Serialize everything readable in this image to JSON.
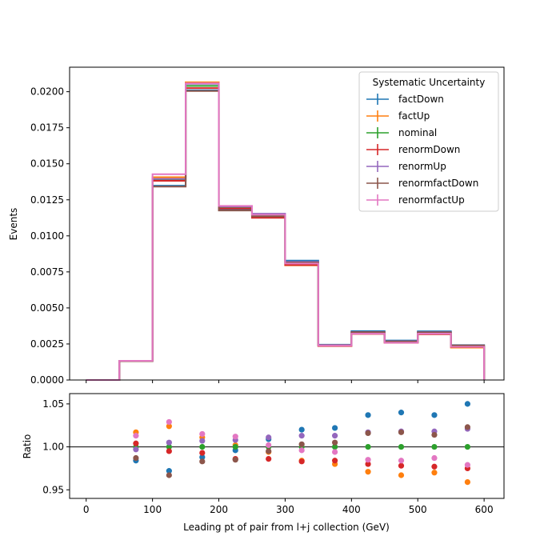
{
  "chart_data": [
    {
      "type": "histogram",
      "xlabel": "",
      "ylabel": "Events",
      "xlim": [
        -25,
        630
      ],
      "ylim": [
        0,
        0.0217
      ],
      "yticks": [
        "0.0000",
        "0.0025",
        "0.0050",
        "0.0075",
        "0.0100",
        "0.0125",
        "0.0150",
        "0.0175",
        "0.0200"
      ],
      "ytick_values": [
        0,
        0.0025,
        0.005,
        0.0075,
        0.01,
        0.0125,
        0.015,
        0.0175,
        0.02
      ],
      "bin_edges": [
        0,
        50,
        100,
        150,
        200,
        250,
        300,
        350,
        400,
        450,
        500,
        550,
        600
      ],
      "legend_title": "Systematic Uncertainty",
      "legend_position": "top-right",
      "series": [
        {
          "name": "factDown",
          "color": "#1f77b4",
          "values": [
            0.0,
            0.00132,
            0.01348,
            0.0201,
            0.01183,
            0.01137,
            0.00828,
            0.00245,
            0.00339,
            0.00274,
            0.00338,
            0.00242
          ]
        },
        {
          "name": "factUp",
          "color": "#ff7f0e",
          "values": [
            0.0,
            0.00133,
            0.01407,
            0.02065,
            0.01206,
            0.01132,
            0.00796,
            0.00236,
            0.00323,
            0.00259,
            0.00323,
            0.00225
          ]
        },
        {
          "name": "nominal",
          "color": "#2ca02c",
          "values": [
            0.0,
            0.00132,
            0.01388,
            0.0204,
            0.01194,
            0.01141,
            0.00812,
            0.0024,
            0.00327,
            0.00264,
            0.00326,
            0.00235
          ]
        },
        {
          "name": "renormDown",
          "color": "#d62728",
          "values": [
            0.0,
            0.00132,
            0.01382,
            0.02025,
            0.0119,
            0.01125,
            0.00798,
            0.00236,
            0.0032,
            0.00258,
            0.00318,
            0.00229
          ]
        },
        {
          "name": "renormUp",
          "color": "#9467bd",
          "values": [
            0.0,
            0.00133,
            0.01395,
            0.02055,
            0.01203,
            0.01154,
            0.0082,
            0.00243,
            0.00333,
            0.00269,
            0.00332,
            0.0024
          ]
        },
        {
          "name": "renormfactDown",
          "color": "#8c564b",
          "values": [
            0.0,
            0.00132,
            0.01342,
            0.02005,
            0.01176,
            0.01135,
            0.00815,
            0.00241,
            0.00332,
            0.00268,
            0.00331,
            0.0024
          ]
        },
        {
          "name": "renormfactUp",
          "color": "#e377c2",
          "values": [
            0.0,
            0.00133,
            0.01428,
            0.02058,
            0.01208,
            0.01147,
            0.00808,
            0.00239,
            0.00322,
            0.00259,
            0.00322,
            0.0023
          ]
        }
      ]
    },
    {
      "type": "scatter",
      "xlabel": "Leading pt of pair from l+j collection (GeV)",
      "ylabel": "Ratio",
      "xlim": [
        -25,
        630
      ],
      "ylim": [
        0.94,
        1.062
      ],
      "xticks": [
        "0",
        "100",
        "200",
        "300",
        "400",
        "500",
        "600"
      ],
      "xtick_values": [
        0,
        100,
        200,
        300,
        400,
        500,
        600
      ],
      "yticks": [
        "0.95",
        "1.00",
        "1.05"
      ],
      "ytick_values": [
        0.95,
        1.0,
        1.05
      ],
      "reference_line": 1.0,
      "x": [
        75,
        125,
        175,
        225,
        275,
        325,
        375,
        425,
        475,
        525,
        575
      ],
      "series": [
        {
          "name": "factDown",
          "color": "#1f77b4",
          "values": [
            0.984,
            0.972,
            0.988,
            0.996,
            1.009,
            1.02,
            1.022,
            1.037,
            1.04,
            1.037,
            1.05
          ]
        },
        {
          "name": "factUp",
          "color": "#ff7f0e",
          "values": [
            1.017,
            1.024,
            1.011,
            1.002,
            0.994,
            0.984,
            0.98,
            0.971,
            0.967,
            0.97,
            0.959
          ]
        },
        {
          "name": "nominal",
          "color": "#2ca02c",
          "values": [
            1.0,
            1.0,
            1.0,
            1.0,
            1.0,
            1.0,
            1.0,
            1.0,
            1.0,
            1.0,
            1.0
          ]
        },
        {
          "name": "renormDown",
          "color": "#d62728",
          "values": [
            1.004,
            0.995,
            0.993,
            0.986,
            0.986,
            0.983,
            0.984,
            0.98,
            0.978,
            0.977,
            0.975
          ]
        },
        {
          "name": "renormUp",
          "color": "#9467bd",
          "values": [
            0.997,
            1.005,
            1.007,
            1.008,
            1.011,
            1.013,
            1.013,
            1.017,
            1.018,
            1.018,
            1.021
          ]
        },
        {
          "name": "renormfactDown",
          "color": "#8c564b",
          "values": [
            0.987,
            0.967,
            0.983,
            0.985,
            0.995,
            1.003,
            1.005,
            1.016,
            1.017,
            1.014,
            1.023
          ]
        },
        {
          "name": "renormfactUp",
          "color": "#e377c2",
          "values": [
            1.013,
            1.029,
            1.015,
            1.012,
            1.002,
            0.996,
            0.994,
            0.985,
            0.984,
            0.987,
            0.979
          ]
        }
      ]
    }
  ]
}
